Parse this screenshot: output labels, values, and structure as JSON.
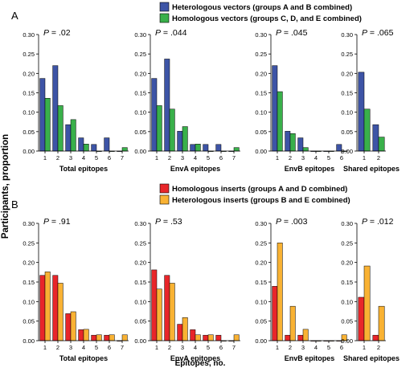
{
  "ylabel": "Participants, proportion",
  "xlabel": "Epitopes, no.",
  "colors": {
    "blue": "#3d54a6",
    "green": "#39b04a",
    "red": "#e8262a",
    "orange": "#f9b233"
  },
  "panels": [
    {
      "label": "A",
      "legend": [
        {
          "name": "Heterologous vectors (groups A and B combined)",
          "color": "#3d54a6"
        },
        {
          "name": "Homologous vectors (groups C, D, and E combined)",
          "color": "#39b04a"
        }
      ]
    },
    {
      "label": "B",
      "legend": [
        {
          "name": "Homologous inserts (groups A and D combined)",
          "color": "#e8262a"
        },
        {
          "name": "Heterologous inserts (groups B and E combined)",
          "color": "#f9b233"
        }
      ]
    }
  ],
  "chart_data": [
    {
      "type": "bar",
      "panel": "A",
      "title": "P = .02",
      "xlabel": "Total epitopes",
      "categories": [
        "1",
        "2",
        "3",
        "4",
        "5",
        "6",
        "7"
      ],
      "series": [
        {
          "name": "Heterologous vectors (groups A and B combined)",
          "color": "#3d54a6",
          "values": [
            0.187,
            0.22,
            0.068,
            0.034,
            0.017,
            0.034,
            0
          ]
        },
        {
          "name": "Homologous vectors (groups C, D, and E combined)",
          "color": "#39b04a",
          "values": [
            0.136,
            0.117,
            0.081,
            0.018,
            0,
            0,
            0.009
          ]
        }
      ],
      "ylim": [
        0,
        0.3
      ],
      "yticks": [
        "0.00",
        "0.05",
        "0.10",
        "0.15",
        "0.20",
        "0.25",
        "0.30"
      ]
    },
    {
      "type": "bar",
      "panel": "A",
      "title": "P = .044",
      "xlabel": "EnvA epitopes",
      "categories": [
        "1",
        "2",
        "3",
        "4",
        "5",
        "6",
        "7"
      ],
      "series": [
        {
          "name": "Heterologous vectors (groups A and B combined)",
          "color": "#3d54a6",
          "values": [
            0.187,
            0.237,
            0.051,
            0.017,
            0.017,
            0.017,
            0
          ]
        },
        {
          "name": "Homologous vectors (groups C, D, and E combined)",
          "color": "#39b04a",
          "values": [
            0.117,
            0.108,
            0.063,
            0.018,
            0,
            0,
            0.009
          ]
        }
      ],
      "ylim": [
        0,
        0.3
      ],
      "yticks": [
        "0.00",
        "0.05",
        "0.10",
        "0.15",
        "0.20",
        "0.25",
        "0.30"
      ]
    },
    {
      "type": "bar",
      "panel": "A",
      "title": "P = .045",
      "xlabel": "EnvB epitopes",
      "categories": [
        "1",
        "2",
        "3",
        "4",
        "5",
        "6"
      ],
      "series": [
        {
          "name": "Heterologous vectors (groups A and B combined)",
          "color": "#3d54a6",
          "values": [
            0.22,
            0.051,
            0.034,
            0,
            0,
            0.017
          ]
        },
        {
          "name": "Homologous vectors (groups C, D, and E combined)",
          "color": "#39b04a",
          "values": [
            0.153,
            0.045,
            0.009,
            0,
            0,
            0
          ]
        }
      ],
      "ylim": [
        0,
        0.3
      ],
      "yticks": [
        "0.00",
        "0.05",
        "0.10",
        "0.15",
        "0.20",
        "0.25",
        "0.30"
      ]
    },
    {
      "type": "bar",
      "panel": "A",
      "title": "P = .065",
      "xlabel": "Shared epitopes",
      "categories": [
        "1",
        "2"
      ],
      "series": [
        {
          "name": "Heterologous vectors (groups A and B combined)",
          "color": "#3d54a6",
          "values": [
            0.203,
            0.068
          ]
        },
        {
          "name": "Homologous vectors (groups C, D, and E combined)",
          "color": "#39b04a",
          "values": [
            0.108,
            0.036
          ]
        }
      ],
      "ylim": [
        0,
        0.3
      ],
      "yticks": [
        "0.00",
        "0.05",
        "0.10",
        "0.15",
        "0.20",
        "0.25",
        "0.30"
      ]
    },
    {
      "type": "bar",
      "panel": "B",
      "title": "P = .91",
      "xlabel": "Total epitopes",
      "categories": [
        "1",
        "2",
        "3",
        "4",
        "5",
        "6",
        "7"
      ],
      "series": [
        {
          "name": "Homologous inserts (groups A and D combined)",
          "color": "#e8262a",
          "values": [
            0.167,
            0.167,
            0.069,
            0.028,
            0.014,
            0.014,
            0
          ]
        },
        {
          "name": "Heterologous inserts (groups B and E combined)",
          "color": "#f9b233",
          "values": [
            0.176,
            0.147,
            0.074,
            0.029,
            0.015,
            0.015,
            0.015
          ]
        }
      ],
      "ylim": [
        0,
        0.3
      ],
      "yticks": [
        "0.00",
        "0.05",
        "0.10",
        "0.15",
        "0.20",
        "0.25",
        "0.30"
      ]
    },
    {
      "type": "bar",
      "panel": "B",
      "title": "P = .53",
      "xlabel": "EnvA epitopes",
      "categories": [
        "1",
        "2",
        "3",
        "4",
        "5",
        "6",
        "7"
      ],
      "series": [
        {
          "name": "Homologous inserts (groups A and D combined)",
          "color": "#e8262a",
          "values": [
            0.181,
            0.167,
            0.042,
            0.028,
            0.014,
            0.014,
            0
          ]
        },
        {
          "name": "Heterologous inserts (groups B and E combined)",
          "color": "#f9b233",
          "values": [
            0.132,
            0.147,
            0.059,
            0.015,
            0.015,
            0,
            0.015
          ]
        }
      ],
      "ylim": [
        0,
        0.3
      ],
      "yticks": [
        "0.00",
        "0.05",
        "0.10",
        "0.15",
        "0.20",
        "0.25",
        "0.30"
      ]
    },
    {
      "type": "bar",
      "panel": "B",
      "title": "P = .003",
      "xlabel": "EnvB epitopes",
      "categories": [
        "1",
        "2",
        "3",
        "4",
        "5",
        "6"
      ],
      "series": [
        {
          "name": "Homologous inserts (groups A and D combined)",
          "color": "#e8262a",
          "values": [
            0.139,
            0.014,
            0.014,
            0,
            0,
            0
          ]
        },
        {
          "name": "Heterologous inserts (groups B and E combined)",
          "color": "#f9b233",
          "values": [
            0.25,
            0.088,
            0.029,
            0,
            0,
            0.015
          ]
        }
      ],
      "ylim": [
        0,
        0.3
      ],
      "yticks": [
        "0.00",
        "0.05",
        "0.10",
        "0.15",
        "0.20",
        "0.25",
        "0.30"
      ]
    },
    {
      "type": "bar",
      "panel": "B",
      "title": "P = .012",
      "xlabel": "Shared epitopes",
      "categories": [
        "1",
        "2"
      ],
      "series": [
        {
          "name": "Homologous inserts (groups A and D combined)",
          "color": "#e8262a",
          "values": [
            0.111,
            0.014
          ]
        },
        {
          "name": "Heterologous inserts (groups B and E combined)",
          "color": "#f9b233",
          "values": [
            0.191,
            0.088
          ]
        }
      ],
      "ylim": [
        0,
        0.3
      ],
      "yticks": [
        "0.00",
        "0.05",
        "0.10",
        "0.15",
        "0.20",
        "0.25",
        "0.30"
      ]
    }
  ]
}
